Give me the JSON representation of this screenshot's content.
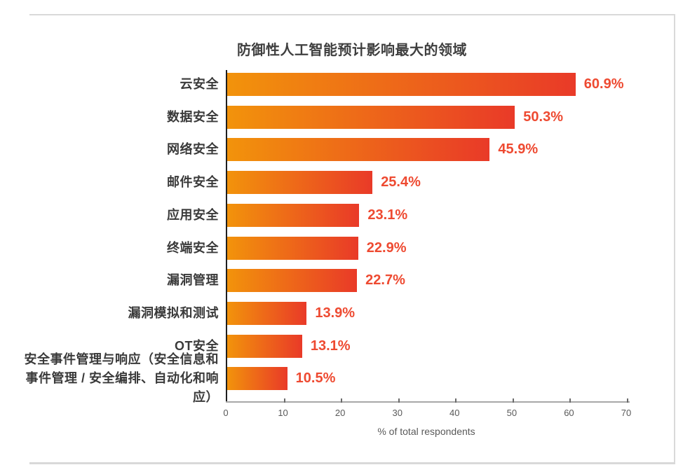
{
  "chart_data": {
    "type": "bar",
    "orientation": "horizontal",
    "title": "防御性人工智能预计影响最大的领域",
    "categories": [
      "云安全",
      "数据安全",
      "网络安全",
      "邮件安全",
      "应用安全",
      "终端安全",
      "漏洞管理",
      "漏洞模拟和测试",
      "OT安全",
      "安全事件管理与响应（安全信息和事件管理 / 安全编排、自动化和响应）"
    ],
    "values": [
      60.9,
      50.3,
      45.9,
      25.4,
      23.1,
      22.9,
      22.7,
      13.9,
      13.1,
      10.5
    ],
    "value_labels": [
      "60.9%",
      "50.3%",
      "45.9%",
      "25.4%",
      "23.1%",
      "22.9%",
      "22.7%",
      "13.9%",
      "13.1%",
      "10.5%"
    ],
    "xlabel": "% of total respondents",
    "xlim": [
      0,
      70
    ],
    "x_ticks": [
      0,
      10,
      20,
      30,
      40,
      50,
      60,
      70
    ],
    "grid": false,
    "legend": "none",
    "colors": {
      "bar_gradient_start": "#F2930B",
      "bar_gradient_end": "#E93A28",
      "value_label": "#EE4A31",
      "category_label": "#3A3A3A",
      "title": "#3F3F3F",
      "axis_text": "#595959",
      "y_axis_line": "#1F1F1F",
      "x_axis_line": "#A8A8A8",
      "frame_border": "#D9D9D9"
    }
  }
}
